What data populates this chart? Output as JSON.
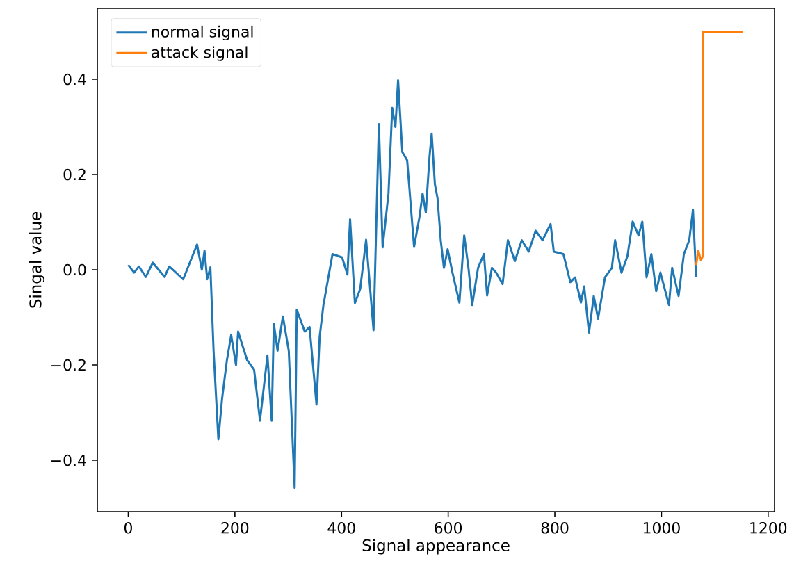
{
  "chart_data": {
    "type": "line",
    "xlabel": "Signal appearance",
    "ylabel": "Singal value",
    "xlim": [
      -58,
      1212
    ],
    "ylim": [
      -0.508,
      0.549
    ],
    "xticks": [
      0,
      200,
      400,
      600,
      800,
      1000,
      1200
    ],
    "yticks": [
      {
        "value": -0.4,
        "label": "−0.4"
      },
      {
        "value": -0.2,
        "label": "−0.2"
      },
      {
        "value": 0,
        "label": "0.0"
      },
      {
        "value": 0.2,
        "label": "0.2"
      },
      {
        "value": 0.4,
        "label": "0.4"
      }
    ],
    "legend": "top left",
    "line_style": "solid",
    "series": [
      {
        "name": "normal signal",
        "color": "#1f77b4",
        "x": [
          0,
          11,
          20,
          33,
          46,
          68,
          77,
          103,
          129,
          138,
          143,
          148,
          154,
          160,
          169,
          176,
          185,
          193,
          202,
          206,
          223,
          236,
          247,
          261,
          269,
          273,
          280,
          290,
          301,
          312,
          316,
          331,
          340,
          353,
          359,
          366,
          383,
          401,
          411,
          416,
          425,
          435,
          446,
          460,
          470,
          477,
          488,
          495,
          501,
          506,
          514,
          523,
          536,
          546,
          552,
          558,
          565,
          569,
          575,
          580,
          586,
          592,
          599,
          608,
          621,
          630,
          638,
          645,
          656,
          667,
          673,
          682,
          690,
          702,
          712,
          725,
          738,
          751,
          764,
          777,
          792,
          798,
          816,
          829,
          838,
          849,
          855,
          864,
          873,
          881,
          894,
          907,
          913,
          925,
          936,
          946,
          957,
          964,
          972,
          981,
          990,
          998,
          1014,
          1020,
          1032,
          1042,
          1052,
          1059,
          1065
        ],
        "values": [
          0.01,
          -0.006,
          0.007,
          -0.015,
          0.015,
          -0.015,
          0.007,
          -0.02,
          0.053,
          0.0,
          0.04,
          -0.02,
          0.005,
          -0.17,
          -0.356,
          -0.27,
          -0.19,
          -0.137,
          -0.2,
          -0.13,
          -0.19,
          -0.21,
          -0.317,
          -0.18,
          -0.317,
          -0.113,
          -0.17,
          -0.098,
          -0.17,
          -0.458,
          -0.084,
          -0.13,
          -0.12,
          -0.283,
          -0.14,
          -0.074,
          0.033,
          0.026,
          -0.01,
          0.106,
          -0.07,
          -0.04,
          0.063,
          -0.127,
          0.306,
          0.047,
          0.16,
          0.34,
          0.3,
          0.398,
          0.247,
          0.23,
          0.048,
          0.11,
          0.16,
          0.12,
          0.238,
          0.286,
          0.18,
          0.15,
          0.062,
          0.004,
          0.043,
          -0.006,
          -0.069,
          0.072,
          0.004,
          -0.074,
          0.004,
          0.033,
          -0.054,
          0.004,
          -0.006,
          -0.03,
          0.062,
          0.018,
          0.062,
          0.038,
          0.082,
          0.062,
          0.096,
          0.038,
          0.033,
          -0.026,
          -0.016,
          -0.069,
          -0.035,
          -0.132,
          -0.055,
          -0.103,
          -0.016,
          0.004,
          0.062,
          -0.006,
          0.028,
          0.101,
          0.072,
          0.101,
          -0.016,
          0.033,
          -0.045,
          -0.006,
          -0.074,
          0.004,
          -0.055,
          0.033,
          0.062,
          0.126,
          -0.016
        ]
      },
      {
        "name": "attack signal",
        "color": "#ff7f0e",
        "x": [
          1065,
          1069,
          1074,
          1078,
          1078,
          1152
        ],
        "values": [
          0.01,
          0.04,
          0.02,
          0.03,
          0.5,
          0.5
        ]
      }
    ]
  }
}
